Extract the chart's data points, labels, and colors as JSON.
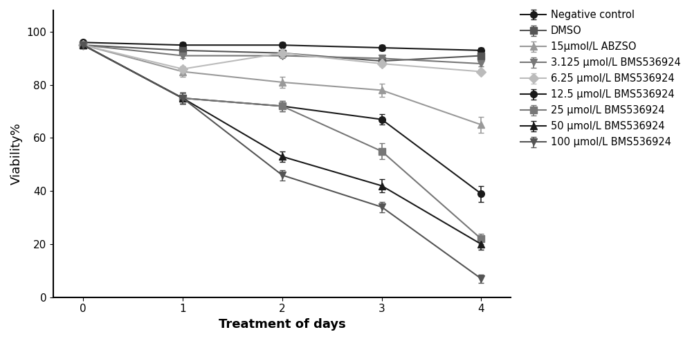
{
  "x": [
    0,
    1,
    2,
    3,
    4
  ],
  "series": [
    {
      "label": "Negative control",
      "color": "#1a1a1a",
      "marker": "o",
      "markersize": 7,
      "linewidth": 1.5,
      "linestyle": "-",
      "values": [
        96,
        95,
        95,
        94,
        93
      ],
      "errors": [
        1.0,
        1.0,
        1.0,
        1.0,
        1.0
      ]
    },
    {
      "label": "DMSO",
      "color": "#555555",
      "marker": "s",
      "markersize": 7,
      "linewidth": 1.5,
      "linestyle": "-",
      "values": [
        95,
        93,
        92,
        89,
        91
      ],
      "errors": [
        1.0,
        1.0,
        1.0,
        1.0,
        1.0
      ]
    },
    {
      "label": "15μmol/L ABZSO",
      "color": "#999999",
      "marker": "^",
      "markersize": 7,
      "linewidth": 1.5,
      "linestyle": "-",
      "values": [
        95,
        85,
        81,
        78,
        65
      ],
      "errors": [
        1.0,
        2.0,
        2.0,
        2.5,
        3.0
      ]
    },
    {
      "label": "3.125 μmol/L BMS536924",
      "color": "#777777",
      "marker": "v",
      "markersize": 7,
      "linewidth": 1.5,
      "linestyle": "-",
      "values": [
        95,
        91,
        91,
        90,
        88
      ],
      "errors": [
        1.0,
        1.0,
        1.0,
        1.0,
        1.0
      ]
    },
    {
      "label": "6.25 μmol/L BMS536924",
      "color": "#bbbbbb",
      "marker": "D",
      "markersize": 7,
      "linewidth": 1.5,
      "linestyle": "-",
      "values": [
        95,
        86,
        92,
        88,
        85
      ],
      "errors": [
        1.0,
        1.0,
        1.0,
        1.0,
        1.0
      ]
    },
    {
      "label": "12.5 μmol/L BMS536924",
      "color": "#1a1a1a",
      "marker": "o",
      "markersize": 7,
      "linewidth": 1.5,
      "linestyle": "-",
      "values": [
        95,
        75,
        72,
        67,
        39
      ],
      "errors": [
        1.0,
        2.0,
        2.0,
        2.0,
        3.0
      ]
    },
    {
      "label": "25 μmol/L BMS536924",
      "color": "#777777",
      "marker": "s",
      "markersize": 7,
      "linewidth": 1.5,
      "linestyle": "-",
      "values": [
        95,
        75,
        72,
        55,
        22
      ],
      "errors": [
        1.0,
        2.0,
        2.0,
        3.0,
        2.0
      ]
    },
    {
      "label": "50 μmol/L BMS536924",
      "color": "#1a1a1a",
      "marker": "^",
      "markersize": 7,
      "linewidth": 1.5,
      "linestyle": "-",
      "values": [
        95,
        75,
        53,
        42,
        20
      ],
      "errors": [
        1.0,
        2.0,
        2.0,
        2.5,
        2.0
      ]
    },
    {
      "label": "100 μmol/L BMS536924",
      "color": "#555555",
      "marker": "v",
      "markersize": 7,
      "linewidth": 1.5,
      "linestyle": "-",
      "values": [
        95,
        75,
        46,
        34,
        7
      ],
      "errors": [
        1.0,
        2.0,
        2.0,
        2.0,
        1.5
      ]
    }
  ],
  "xlabel": "Treatment of days",
  "ylabel": "Viability%",
  "xlim": [
    -0.3,
    4.3
  ],
  "ylim": [
    0,
    108
  ],
  "yticks": [
    0,
    20,
    40,
    60,
    80,
    100
  ],
  "xticks": [
    0,
    1,
    2,
    3,
    4
  ],
  "background_color": "#ffffff",
  "legend_fontsize": 10.5,
  "axis_label_fontsize": 13,
  "tick_fontsize": 11
}
